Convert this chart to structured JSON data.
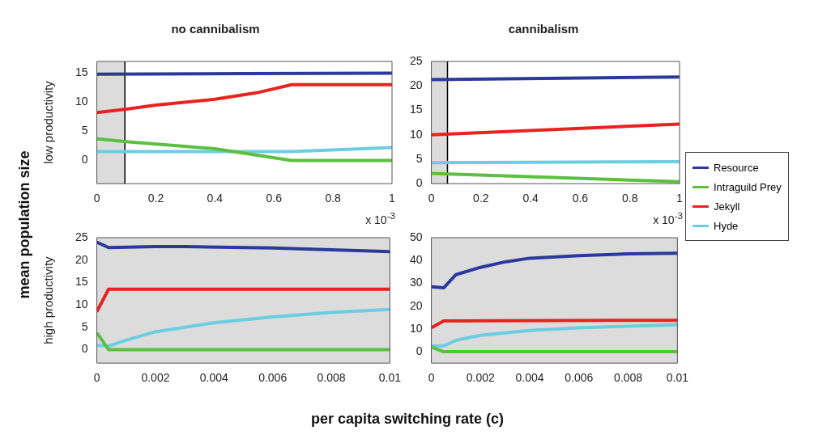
{
  "chart_data": [
    {
      "type": "line",
      "title": "no cannibalism",
      "ylabel": "low productivity",
      "xlim": [
        0,
        1
      ],
      "xticks": [
        0,
        0.2,
        0.4,
        0.6,
        0.8,
        1
      ],
      "ylim": [
        -4,
        17
      ],
      "yticks": [
        0,
        5,
        10,
        15
      ],
      "annotations": [
        "x 10$^{-3}$"
      ],
      "bands": [
        {
          "axis": "x",
          "from": 0,
          "to": 0.095,
          "color": "#dcdcdc"
        }
      ],
      "ref_lines": [
        {
          "axis": "x",
          "value": 0.095,
          "color": "#000000"
        }
      ],
      "series": [
        {
          "color": "#2b3a9a",
          "x": [
            0,
            0.5,
            1
          ],
          "values": [
            14.8,
            14.9,
            15.0
          ]
        },
        {
          "color": "#5bbf3f",
          "x": [
            0,
            0.1,
            0.4,
            0.66,
            1
          ],
          "values": [
            3.7,
            3.2,
            2.0,
            0,
            0
          ]
        },
        {
          "color": "#e8231f",
          "x": [
            0,
            0.1,
            0.2,
            0.4,
            0.55,
            0.66,
            1
          ],
          "values": [
            8.2,
            8.8,
            9.5,
            10.5,
            11.7,
            13,
            13
          ]
        },
        {
          "color": "#6ccde0",
          "x": [
            0,
            0.66,
            1
          ],
          "values": [
            1.5,
            1.5,
            2.2
          ]
        }
      ]
    },
    {
      "type": "line",
      "title": "cannibalism",
      "xlim": [
        0,
        1
      ],
      "xticks": [
        0,
        0.2,
        0.4,
        0.6,
        0.8,
        1
      ],
      "ylim": [
        0,
        25
      ],
      "yticks": [
        0,
        5,
        10,
        15,
        20,
        25
      ],
      "annotations": [
        "x 10$^{-3}$"
      ],
      "legend": "right",
      "bands": [
        {
          "axis": "x",
          "from": 0,
          "to": 0.065,
          "color": "#dcdcdc"
        }
      ],
      "ref_lines": [
        {
          "axis": "x",
          "value": 0.065,
          "color": "#000000"
        }
      ],
      "series": [
        {
          "name": "Resource",
          "color": "#2b3a9a",
          "x": [
            0,
            1
          ],
          "values": [
            21.3,
            21.8
          ]
        },
        {
          "name": "Intraguild Prey",
          "color": "#5bbf3f",
          "x": [
            0,
            1
          ],
          "values": [
            2.1,
            0.4
          ]
        },
        {
          "name": "Jekyll",
          "color": "#e8231f",
          "x": [
            0,
            1
          ],
          "values": [
            10,
            12.2
          ]
        },
        {
          "name": "Hyde",
          "color": "#6ccde0",
          "x": [
            0,
            1
          ],
          "values": [
            4.3,
            4.5
          ]
        }
      ]
    },
    {
      "type": "line",
      "ylabel": "high productivity",
      "xlabel": "per capita switching rate (c)",
      "xlim": [
        0,
        0.01
      ],
      "xticks": [
        0,
        0.002,
        0.004,
        0.006,
        0.008,
        0.01
      ],
      "ylim": [
        -3,
        25
      ],
      "yticks": [
        0,
        5,
        10,
        15,
        20,
        25
      ],
      "annotations": [
        "mean population size"
      ],
      "bands": [
        {
          "axis": "x",
          "from": 0,
          "to": 0.01,
          "color": "#dcdcdc"
        }
      ],
      "series": [
        {
          "color": "#2b3a9a",
          "x": [
            0,
            0.0004,
            0.002,
            0.003,
            0.006,
            0.008,
            0.01
          ],
          "values": [
            24,
            22.8,
            23,
            23,
            22.7,
            22.3,
            21.9
          ]
        },
        {
          "color": "#5bbf3f",
          "x": [
            0,
            0.0004,
            0.01
          ],
          "values": [
            3.8,
            0,
            0
          ]
        },
        {
          "color": "#e8231f",
          "x": [
            0,
            0.0004,
            0.01
          ],
          "values": [
            8.5,
            13.5,
            13.5
          ]
        },
        {
          "color": "#6ccde0",
          "x": [
            0,
            0.0004,
            0.001,
            0.002,
            0.004,
            0.006,
            0.008,
            0.01
          ],
          "values": [
            1.0,
            0.8,
            2.1,
            4.0,
            6.0,
            7.3,
            8.3,
            9.0
          ]
        }
      ]
    },
    {
      "type": "line",
      "xlim": [
        0,
        0.01
      ],
      "xticks": [
        0,
        0.002,
        0.004,
        0.006,
        0.008,
        0.01
      ],
      "ylim": [
        -5,
        50
      ],
      "yticks": [
        0,
        10,
        20,
        30,
        40,
        50
      ],
      "bands": [
        {
          "axis": "x",
          "from": 0,
          "to": 0.01,
          "color": "#dcdcdc"
        }
      ],
      "series": [
        {
          "color": "#2b3a9a",
          "x": [
            0,
            0.0005,
            0.001,
            0.002,
            0.003,
            0.004,
            0.006,
            0.008,
            0.01
          ],
          "values": [
            28.5,
            28,
            33.8,
            37,
            39.4,
            41,
            42.1,
            42.9,
            43.2
          ]
        },
        {
          "color": "#5bbf3f",
          "x": [
            0,
            0.0005,
            0.01
          ],
          "values": [
            2,
            0,
            0
          ]
        },
        {
          "color": "#e8231f",
          "x": [
            0,
            0.0005,
            0.01
          ],
          "values": [
            10.5,
            13.5,
            13.8
          ]
        },
        {
          "color": "#6ccde0",
          "x": [
            0,
            0.0005,
            0.001,
            0.002,
            0.004,
            0.006,
            0.008,
            0.01
          ],
          "values": [
            2.5,
            2.5,
            5,
            7.2,
            9.3,
            10.5,
            11.2,
            11.8
          ]
        }
      ]
    }
  ]
}
